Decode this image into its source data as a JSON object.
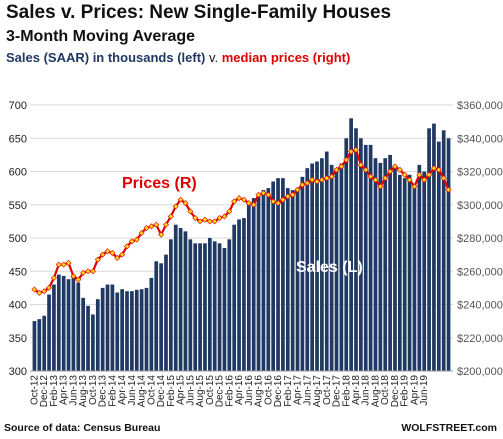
{
  "header": {
    "title": "Sales v. Prices: New Single-Family  Houses",
    "subtitle": "3-Month Moving Average",
    "legend_sales": "Sales (SAAR) in thousands (left)",
    "legend_v": " v. ",
    "legend_prices": "median prices (right)"
  },
  "footer": {
    "source": "Source of data: Census Bureau",
    "brand": "WOLFSTREET.com"
  },
  "colors": {
    "bars": "#203864",
    "line": "#e00000",
    "markers": "#ffd21f",
    "grid": "#d9d9d9"
  },
  "chart_data": {
    "type": "bar+line",
    "x_tick_labels": [
      "Oct-12",
      "Dec-12",
      "Feb-13",
      "Apr-13",
      "Jun-13",
      "Aug-13",
      "Oct-13",
      "Dec-13",
      "Feb-14",
      "Apr-14",
      "Jun-14",
      "Aug-14",
      "Oct-14",
      "Dec-14",
      "Feb-15",
      "Apr-15",
      "Jun-15",
      "Aug-15",
      "Oct-15",
      "Dec-15",
      "Feb-16",
      "Apr-16",
      "Jun-16",
      "Aug-16",
      "Oct-16",
      "Dec-16",
      "Feb-17",
      "Apr-17",
      "Jun-17",
      "Aug-17",
      "Oct-17",
      "Dec-17",
      "Feb-18",
      "Apr-18",
      "Jun-18",
      "Aug-18",
      "Oct-18",
      "Dec-18",
      "Feb-19",
      "Apr-19",
      "Jun-19"
    ],
    "left_axis": {
      "min": 300,
      "max": 700,
      "ticks": [
        "300",
        "350",
        "400",
        "450",
        "500",
        "550",
        "600",
        "650",
        "700"
      ]
    },
    "right_axis": {
      "min": 200000,
      "max": 360000,
      "ticks": [
        "$200,000",
        "$220,000",
        "$240,000",
        "$260,000",
        "$280,000",
        "$300,000",
        "$320,000",
        "$340,000",
        "$360,000"
      ]
    },
    "annotations": {
      "prices_label": "Prices (R)",
      "sales_label": "Sales (L)"
    },
    "series": [
      {
        "name": "Sales (L)",
        "axis": "left",
        "values": [
          375,
          378,
          383,
          415,
          430,
          445,
          443,
          438,
          445,
          433,
          410,
          398,
          385,
          408,
          425,
          430,
          430,
          418,
          423,
          420,
          420,
          422,
          423,
          425,
          440,
          465,
          462,
          475,
          498,
          520,
          515,
          510,
          498,
          492,
          492,
          492,
          500,
          495,
          492,
          485,
          498,
          520,
          528,
          530,
          550,
          560,
          565,
          572,
          575,
          585,
          590,
          590,
          575,
          572,
          575,
          592,
          605,
          612,
          615,
          620,
          630,
          610,
          605,
          612,
          650,
          680,
          665,
          650,
          640,
          640,
          620,
          613,
          620,
          625,
          610,
          595,
          590,
          595,
          580,
          610,
          600,
          665,
          672,
          645,
          662,
          650
        ]
      },
      {
        "name": "Prices (R)",
        "axis": "right",
        "values": [
          249000,
          247000,
          248000,
          250000,
          256000,
          264000,
          264000,
          265000,
          257000,
          255000,
          259000,
          260000,
          260000,
          267000,
          270000,
          272000,
          271000,
          268000,
          270000,
          275000,
          278000,
          279000,
          283000,
          286000,
          287000,
          288000,
          282000,
          288000,
          293000,
          299000,
          303000,
          301000,
          296000,
          292000,
          290000,
          291000,
          290000,
          290000,
          292000,
          293000,
          296000,
          302000,
          304000,
          303000,
          301000,
          300000,
          306000,
          307000,
          306000,
          302000,
          301000,
          303000,
          305000,
          306000,
          309000,
          312000,
          313000,
          315000,
          314000,
          315000,
          316000,
          317000,
          321000,
          323000,
          327000,
          332000,
          333000,
          324000,
          321000,
          317000,
          315000,
          311000,
          316000,
          320000,
          323000,
          321000,
          318000,
          315000,
          311000,
          318000,
          315000,
          318000,
          322000,
          321000,
          316000,
          309000
        ]
      }
    ]
  }
}
